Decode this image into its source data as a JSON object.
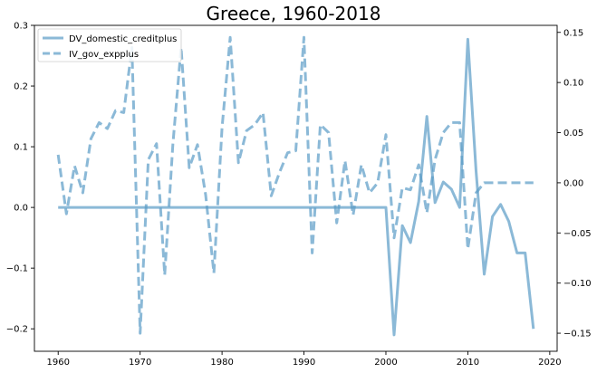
{
  "chart_data": {
    "type": "line",
    "title": "Greece, 1960-2018",
    "xlabel": "",
    "ylabel_left": "",
    "ylabel_right": "",
    "xlim": [
      1957.1,
      2020.9
    ],
    "ylim_left": [
      -0.237,
      0.3
    ],
    "ylim_right": [
      -0.168,
      0.157
    ],
    "x_ticks": [
      "1960",
      "1970",
      "1980",
      "1990",
      "2000",
      "2010",
      "2020"
    ],
    "y_left_ticks": [
      "−0.2",
      "−0.1",
      "0.0",
      "0.1",
      "0.2",
      "0.3"
    ],
    "y_right_ticks": [
      "−0.15",
      "−0.10",
      "−0.05",
      "0.00",
      "0.05",
      "0.10",
      "0.15"
    ],
    "grid": false,
    "legend_position": "top-left",
    "color": "#5a9bc6",
    "series": [
      {
        "name": "DV_domestic_creditplus",
        "axis": "left",
        "style": "solid",
        "x": [
          1960,
          1961,
          1962,
          1963,
          1964,
          1965,
          1966,
          1967,
          1968,
          1969,
          1970,
          1971,
          1972,
          1973,
          1974,
          1975,
          1976,
          1977,
          1978,
          1979,
          1980,
          1981,
          1982,
          1983,
          1984,
          1985,
          1986,
          1987,
          1988,
          1989,
          1990,
          1991,
          1992,
          1993,
          1994,
          1995,
          1996,
          1997,
          1998,
          1999,
          2000,
          2001,
          2002,
          2003,
          2004,
          2005,
          2006,
          2007,
          2008,
          2009,
          2010,
          2011,
          2012,
          2013,
          2014,
          2015,
          2016,
          2017,
          2018
        ],
        "values": [
          0,
          0,
          0,
          0,
          0,
          0,
          0,
          0,
          0,
          0,
          0,
          0,
          0,
          0,
          0,
          0,
          0,
          0,
          0,
          0,
          0,
          0,
          0,
          0,
          0,
          0,
          0,
          0,
          0,
          0,
          0,
          0,
          0,
          0,
          0,
          0,
          0,
          0,
          0,
          0,
          0,
          -0.21,
          -0.03,
          -0.058,
          0.01,
          0.15,
          0.008,
          0.042,
          0.03,
          0.0,
          0.277,
          0.06,
          -0.11,
          -0.015,
          0.005,
          -0.023,
          -0.075,
          -0.075,
          -0.2
        ]
      },
      {
        "name": "IV_gov_expplus",
        "axis": "right",
        "style": "dashed",
        "x": [
          1960,
          1961,
          1962,
          1963,
          1964,
          1965,
          1966,
          1967,
          1968,
          1969,
          1970,
          1971,
          1972,
          1973,
          1974,
          1975,
          1976,
          1977,
          1978,
          1979,
          1980,
          1981,
          1982,
          1983,
          1984,
          1985,
          1986,
          1987,
          1988,
          1989,
          1990,
          1991,
          1992,
          1993,
          1994,
          1995,
          1996,
          1997,
          1998,
          1999,
          2000,
          2001,
          2002,
          2003,
          2004,
          2005,
          2006,
          2007,
          2008,
          2009,
          2010,
          2011,
          2012,
          2013,
          2014,
          2015,
          2016,
          2017,
          2018
        ],
        "values": [
          0.028,
          -0.031,
          0.017,
          -0.01,
          0.044,
          0.06,
          0.054,
          0.072,
          0.07,
          0.135,
          -0.15,
          0.023,
          0.039,
          -0.092,
          0.038,
          0.135,
          0.015,
          0.038,
          -0.012,
          -0.09,
          0.055,
          0.145,
          0.02,
          0.052,
          0.058,
          0.07,
          -0.013,
          0.01,
          0.03,
          0.032,
          0.145,
          -0.07,
          0.058,
          0.05,
          -0.04,
          0.022,
          -0.032,
          0.018,
          -0.01,
          0.0,
          0.048,
          -0.055,
          -0.005,
          -0.007,
          0.018,
          -0.03,
          0.023,
          0.05,
          0.06,
          0.06,
          -0.066,
          -0.01,
          0.0,
          0.0,
          0.0,
          0.0,
          0.0,
          0.0,
          0.0
        ]
      }
    ]
  }
}
